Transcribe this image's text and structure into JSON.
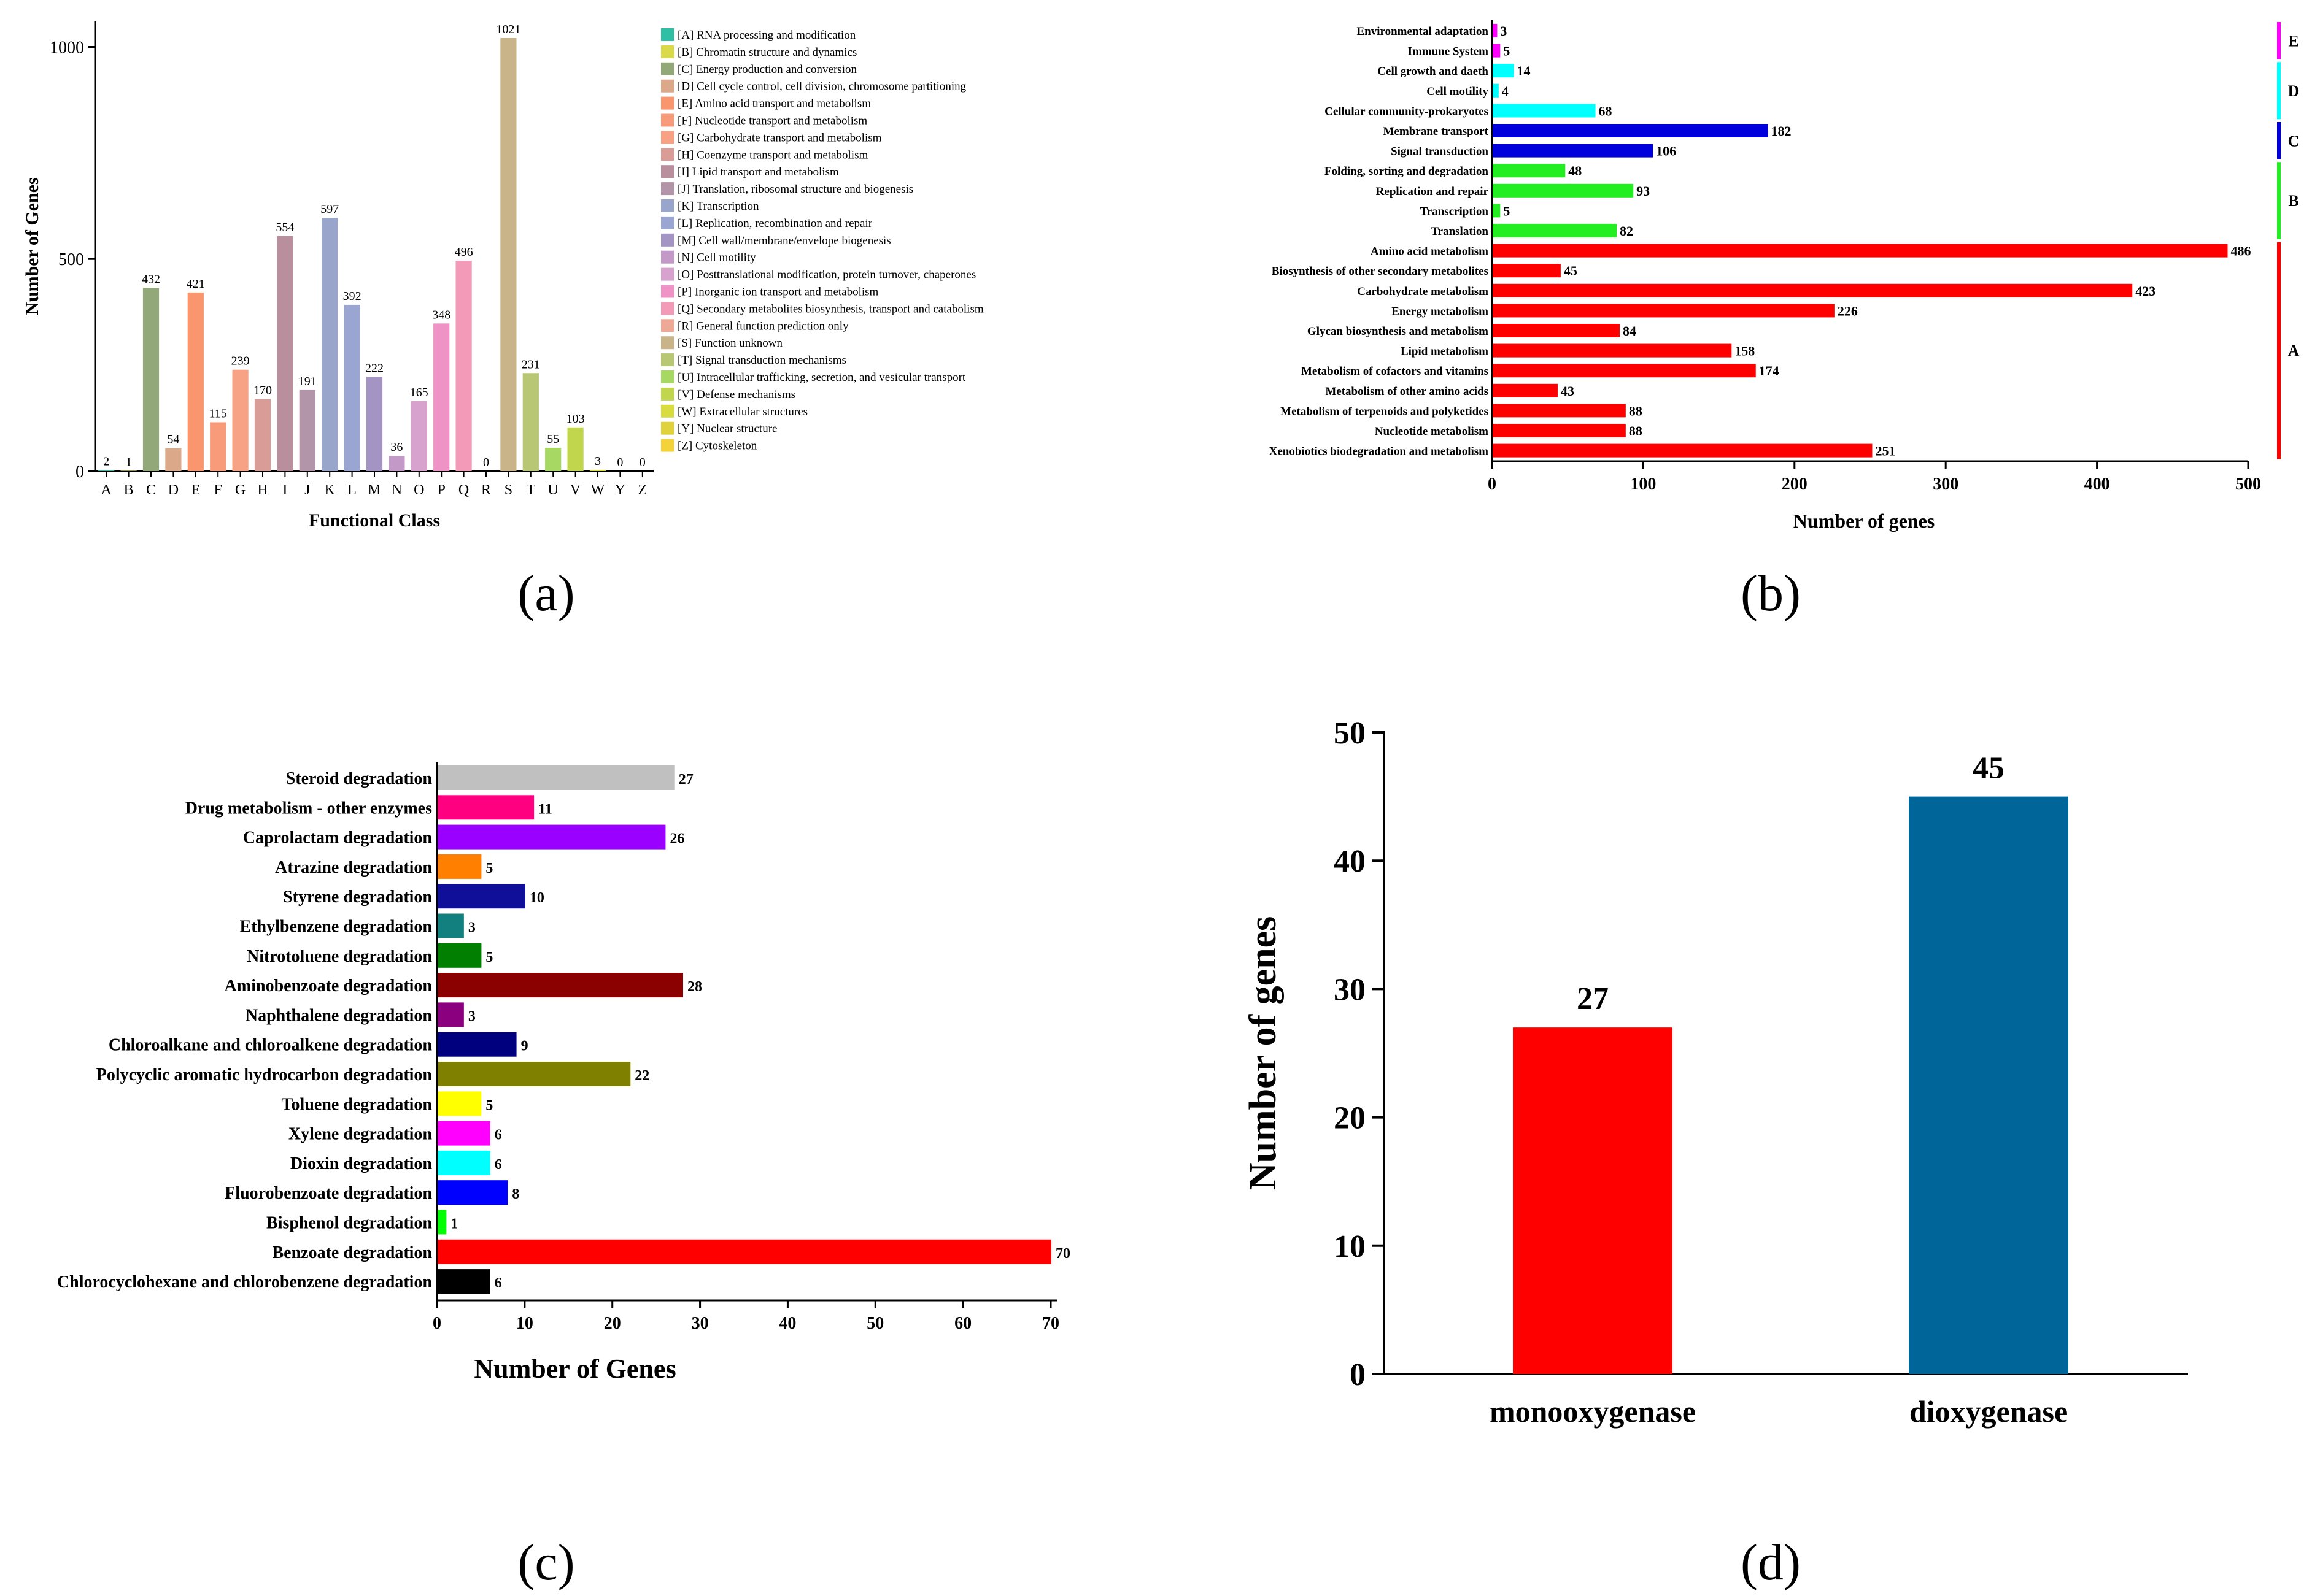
{
  "panel_labels": [
    "(a)",
    "(b)",
    "(c)",
    "(d)"
  ],
  "chart_data": [
    {
      "panel": "(a)",
      "type": "bar",
      "xlabel": "Functional Class",
      "ylabel": "Number of Genes",
      "ylim": [
        0,
        1000
      ],
      "yticks": [
        0,
        500,
        1000
      ],
      "legend_position": "right",
      "categories": [
        "A",
        "B",
        "C",
        "D",
        "E",
        "F",
        "G",
        "H",
        "I",
        "J",
        "K",
        "L",
        "M",
        "N",
        "O",
        "P",
        "Q",
        "R",
        "S",
        "T",
        "U",
        "V",
        "W",
        "Y",
        "Z"
      ],
      "values": [
        2,
        1,
        432,
        54,
        421,
        115,
        239,
        170,
        554,
        191,
        597,
        392,
        222,
        36,
        165,
        348,
        496,
        0,
        1021,
        231,
        55,
        103,
        3,
        0,
        0
      ],
      "colors": [
        "#2ebfa5",
        "#d9d94a",
        "#93a879",
        "#dba989",
        "#fa966e",
        "#f79b7a",
        "#f7a285",
        "#d99c96",
        "#b98f9e",
        "#b295a9",
        "#9aa5cc",
        "#9aa5d1",
        "#a394c4",
        "#c39ac7",
        "#d8a2cf",
        "#ef93c6",
        "#f39ab9",
        "#eda996",
        "#c9b48a",
        "#b7c774",
        "#a7d864",
        "#c1d64c",
        "#d9dc3f",
        "#e0d23c",
        "#f3d23a"
      ],
      "legend": [
        "[A] RNA processing and modification",
        "[B] Chromatin structure and dynamics",
        "[C] Energy production and conversion",
        "[D] Cell cycle control, cell division, chromosome partitioning",
        "[E] Amino acid transport and metabolism",
        "[F] Nucleotide transport and metabolism",
        "[G] Carbohydrate transport and metabolism",
        "[H] Coenzyme transport and metabolism",
        "[I] Lipid transport and metabolism",
        "[J] Translation, ribosomal structure and biogenesis",
        "[K] Transcription",
        "[L] Replication, recombination and repair",
        "[M] Cell wall/membrane/envelope biogenesis",
        "[N] Cell motility",
        "[O] Posttranslational modification, protein turnover, chaperones",
        "[P] Inorganic ion transport and metabolism",
        "[Q] Secondary metabolites biosynthesis, transport and catabolism",
        "[R] General function prediction only",
        "[S] Function unknown",
        "[T] Signal transduction mechanisms",
        "[U] Intracellular trafficking, secretion, and vesicular transport",
        "[V] Defense mechanisms",
        "[W] Extracellular structures",
        "[Y] Nuclear structure",
        "[Z] Cytoskeleton"
      ]
    },
    {
      "panel": "(b)",
      "type": "bar",
      "orientation": "horizontal",
      "xlabel": "Number of genes",
      "ylabel": "",
      "xlim": [
        0,
        500
      ],
      "xticks": [
        0,
        100,
        200,
        300,
        400,
        500
      ],
      "categories": [
        "Environmental adaptation",
        "Immune System",
        "Cell growth and daeth",
        "Cell motility",
        "Cellular community-prokaryotes",
        "Membrane transport",
        "Signal transduction",
        "Folding, sorting and degradation",
        "Replication and repair",
        "Transcription",
        "Translation",
        "Amino acid metabolism",
        "Biosynthesis of other secondary metabolites",
        "Carbohydrate metabolism",
        "Energy metabolism",
        "Glycan biosynthesis and metabolism",
        "Lipid metabolism",
        "Metabolism of cofactors and vitamins",
        "Metabolism of other amino acids",
        "Metabolism of terpenoids and polyketides",
        "Nucleotide metabolism",
        "Xenobiotics biodegradation and metabolism"
      ],
      "values": [
        3,
        5,
        14,
        4,
        68,
        182,
        106,
        48,
        93,
        5,
        82,
        486,
        45,
        423,
        226,
        84,
        158,
        174,
        43,
        88,
        88,
        251
      ],
      "groups": [
        "E",
        "E",
        "D",
        "D",
        "D",
        "C",
        "C",
        "B",
        "B",
        "B",
        "B",
        "A",
        "A",
        "A",
        "A",
        "A",
        "A",
        "A",
        "A",
        "A",
        "A",
        "A"
      ],
      "group_colors": {
        "E": "#ff00ff",
        "D": "#00ffff",
        "C": "#0000dd",
        "B": "#22ee22",
        "A": "#ff0000"
      },
      "group_order": [
        "E",
        "D",
        "C",
        "B",
        "A"
      ]
    },
    {
      "panel": "(c)",
      "type": "bar",
      "orientation": "horizontal",
      "xlabel": "Number of Genes",
      "ylabel": "",
      "xlim": [
        0,
        70
      ],
      "xticks": [
        0,
        10,
        20,
        30,
        40,
        50,
        60,
        70
      ],
      "categories": [
        "Steroid degradation",
        "Drug metabolism - other enzymes",
        "Caprolactam degradation",
        "Atrazine degradation",
        "Styrene degradation",
        "Ethylbenzene degradation",
        "Nitrotoluene degradation",
        "Aminobenzoate degradation",
        "Naphthalene degradation",
        "Chloroalkane and chloroalkene degradation",
        "Polycyclic aromatic hydrocarbon degradation",
        "Toluene degradation",
        "Xylene degradation",
        "Dioxin degradation",
        "Fluorobenzoate degradation",
        "Bisphenol degradation",
        "Benzoate degradation",
        "Chlorocyclohexane and chlorobenzene degradation"
      ],
      "values": [
        27,
        11,
        26,
        5,
        10,
        3,
        5,
        28,
        3,
        9,
        22,
        5,
        6,
        6,
        8,
        1,
        70,
        6
      ],
      "colors": [
        "#c0c0c0",
        "#ff0080",
        "#9900ff",
        "#ff8000",
        "#0f0f9a",
        "#11807f",
        "#007f00",
        "#8b0000",
        "#8b007f",
        "#00007f",
        "#808000",
        "#ffff00",
        "#ff00ff",
        "#00ffff",
        "#0000ff",
        "#00ff00",
        "#ff0000",
        "#000000"
      ]
    },
    {
      "panel": "(d)",
      "type": "bar",
      "xlabel": "",
      "ylabel": "Number of genes",
      "ylim": [
        0,
        50
      ],
      "yticks": [
        0,
        10,
        20,
        30,
        40,
        50
      ],
      "categories": [
        "monooxygenase",
        "dioxygenase"
      ],
      "values": [
        27,
        45
      ],
      "colors": [
        "#ff0000",
        "#006699"
      ]
    }
  ]
}
